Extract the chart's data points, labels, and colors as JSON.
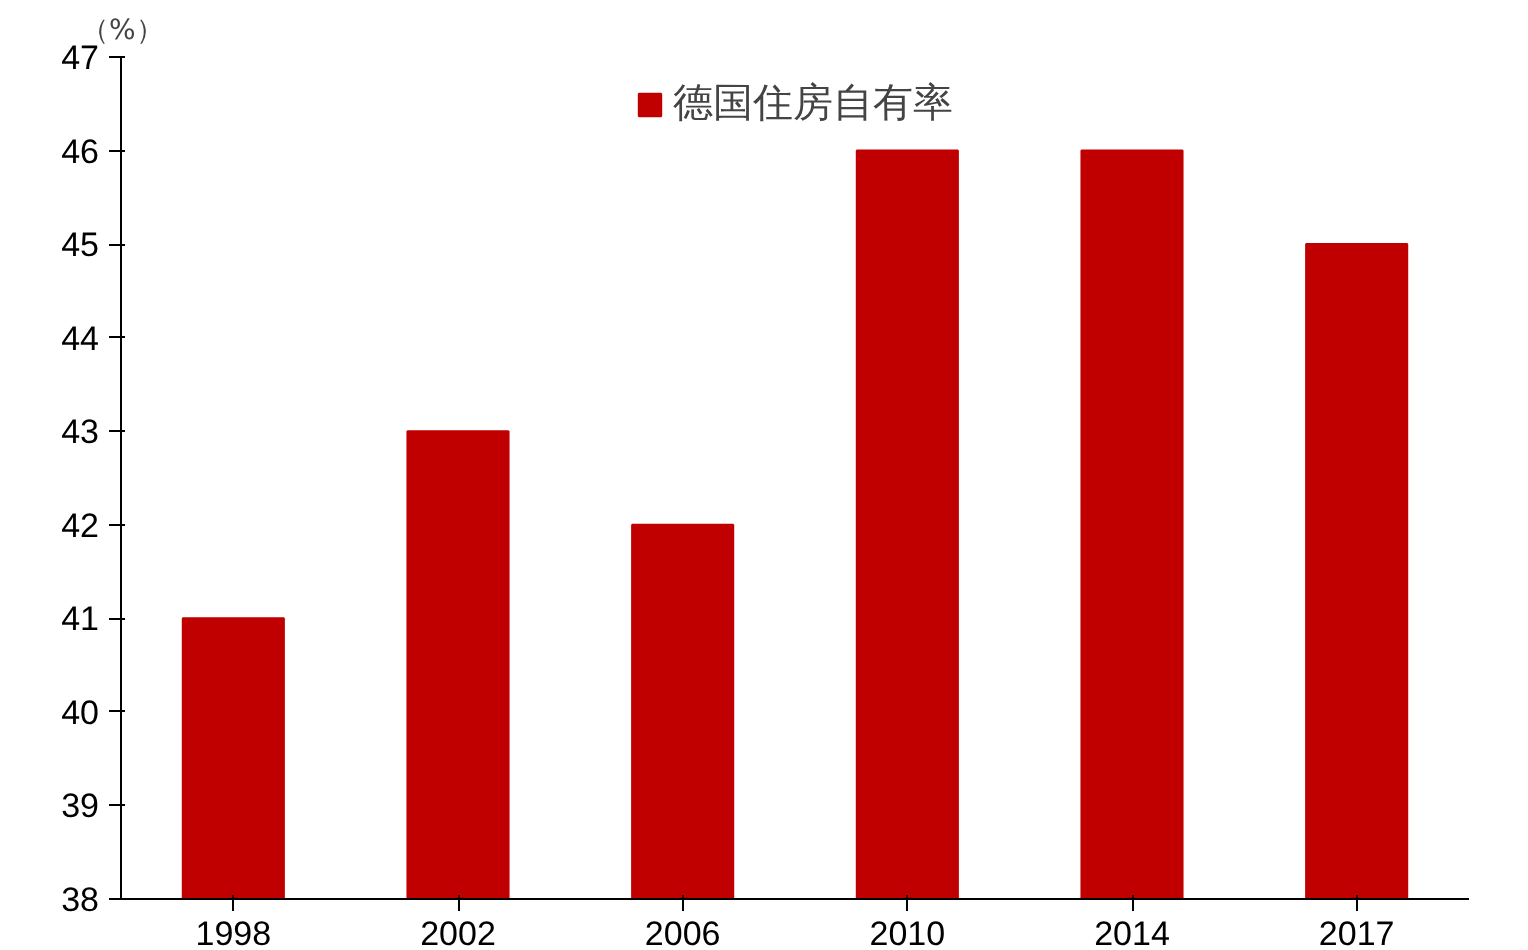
{
  "chart_data": {
    "type": "bar",
    "ylabel": "（%）",
    "categories": [
      "1998",
      "2002",
      "2006",
      "2010",
      "2014",
      "2017"
    ],
    "series": [
      {
        "name": "德国住房自有率",
        "color": "#c00000",
        "values": [
          41,
          43,
          42,
          46,
          46,
          45
        ]
      }
    ],
    "ylim": [
      38,
      47
    ],
    "yticks": [
      38,
      39,
      40,
      41,
      42,
      43,
      44,
      45,
      46,
      47
    ],
    "grid": false,
    "legend": "top"
  }
}
